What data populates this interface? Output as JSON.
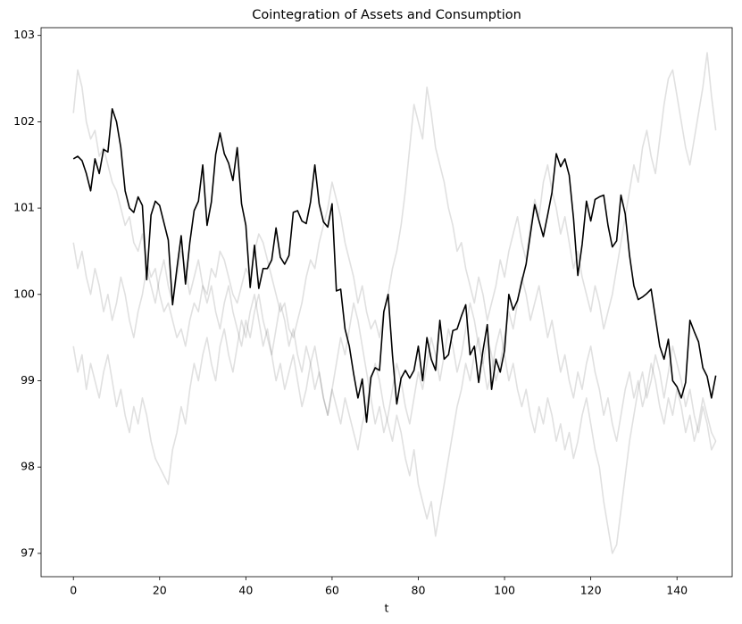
{
  "chart_data": {
    "type": "line",
    "title": "Cointegration of Assets and Consumption",
    "x_label": "t",
    "x": [
      0,
      1,
      2,
      3,
      4,
      5,
      6,
      7,
      8,
      9,
      10,
      11,
      12,
      13,
      14,
      15,
      16,
      17,
      18,
      19,
      20,
      21,
      22,
      23,
      24,
      25,
      26,
      27,
      28,
      29,
      30,
      31,
      32,
      33,
      34,
      35,
      36,
      37,
      38,
      39,
      40,
      41,
      42,
      43,
      44,
      45,
      46,
      47,
      48,
      49,
      50,
      51,
      52,
      53,
      54,
      55,
      56,
      57,
      58,
      59,
      60,
      61,
      62,
      63,
      64,
      65,
      66,
      67,
      68,
      69,
      70,
      71,
      72,
      73,
      74,
      75,
      76,
      77,
      78,
      79,
      80,
      81,
      82,
      83,
      84,
      85,
      86,
      87,
      88,
      89,
      90,
      91,
      92,
      93,
      94,
      95,
      96,
      97,
      98,
      99,
      100,
      101,
      102,
      103,
      104,
      105,
      106,
      107,
      108,
      109,
      110,
      111,
      112,
      113,
      114,
      115,
      116,
      117,
      118,
      119,
      120,
      121,
      122,
      123,
      124,
      125,
      126,
      127,
      128,
      129,
      130,
      131,
      132,
      133,
      134,
      135,
      136,
      137,
      138,
      139,
      140,
      141,
      142,
      143,
      144,
      145,
      146,
      147,
      148,
      149
    ],
    "series": [
      {
        "color": "#000000",
        "alpha": 0.12,
        "values": [
          102.1,
          102.6,
          102.4,
          102.0,
          101.8,
          101.9,
          101.6,
          101.7,
          101.5,
          101.3,
          101.2,
          101.0,
          100.8,
          100.9,
          100.6,
          100.5,
          100.7,
          100.4,
          100.2,
          100.3,
          100.0,
          99.8,
          99.9,
          99.7,
          99.5,
          99.6,
          99.4,
          99.7,
          99.9,
          99.8,
          100.1,
          100.0,
          100.3,
          100.2,
          100.5,
          100.4,
          100.2,
          100.0,
          99.9,
          100.1,
          100.3,
          100.2,
          100.5,
          100.7,
          100.6,
          100.4,
          100.2,
          100.0,
          99.8,
          99.9,
          99.6,
          99.5,
          99.7,
          99.9,
          100.2,
          100.4,
          100.3,
          100.6,
          100.8,
          101.0,
          101.3,
          101.1,
          100.9,
          100.6,
          100.4,
          100.2,
          99.9,
          100.1,
          99.8,
          99.6,
          99.7,
          99.5,
          99.8,
          100.0,
          100.3,
          100.5,
          100.8,
          101.2,
          101.7,
          102.2,
          102.0,
          101.8,
          102.4,
          102.1,
          101.7,
          101.5,
          101.3,
          101.0,
          100.8,
          100.5,
          100.6,
          100.3,
          100.1,
          99.9,
          100.2,
          100.0,
          99.7,
          99.9,
          100.1,
          100.4,
          100.2,
          100.5,
          100.7,
          100.9,
          100.6,
          100.4,
          100.8,
          101.1,
          100.9,
          101.3,
          101.5,
          101.2,
          101.0,
          100.7,
          100.9,
          100.6,
          100.3,
          100.5,
          100.2,
          100.0,
          99.8,
          100.1,
          99.9,
          99.6,
          99.8,
          100.0,
          100.3,
          100.6,
          100.9,
          101.2,
          101.5,
          101.3,
          101.7,
          101.9,
          101.6,
          101.4,
          101.8,
          102.2,
          102.5,
          102.6,
          102.3,
          102.0,
          101.7,
          101.5,
          101.8,
          102.1,
          102.4,
          102.8,
          102.3,
          101.9
        ]
      },
      {
        "color": "#000000",
        "alpha": 0.12,
        "values": [
          99.4,
          99.1,
          99.3,
          98.9,
          99.2,
          99.0,
          98.8,
          99.1,
          99.3,
          99.0,
          98.7,
          98.9,
          98.6,
          98.4,
          98.7,
          98.5,
          98.8,
          98.6,
          98.3,
          98.1,
          98.0,
          97.9,
          97.8,
          98.2,
          98.4,
          98.7,
          98.5,
          98.9,
          99.2,
          99.0,
          99.3,
          99.5,
          99.2,
          99.0,
          99.4,
          99.6,
          99.3,
          99.1,
          99.4,
          99.7,
          99.5,
          99.8,
          100.0,
          99.7,
          99.4,
          99.6,
          99.3,
          99.0,
          99.2,
          98.9,
          99.1,
          99.3,
          99.0,
          98.7,
          98.9,
          99.2,
          99.4,
          99.1,
          98.8,
          98.6,
          98.9,
          99.2,
          99.5,
          99.3,
          99.6,
          99.9,
          99.7,
          99.4,
          99.1,
          98.8,
          98.5,
          98.7,
          98.4,
          98.6,
          98.9,
          99.2,
          99.0,
          98.7,
          98.5,
          98.8,
          99.1,
          98.9,
          99.2,
          99.5,
          99.3,
          99.0,
          99.3,
          99.6,
          99.4,
          99.1,
          99.3,
          99.6,
          99.9,
          99.7,
          99.4,
          99.2,
          99.5,
          99.3,
          99.0,
          99.2,
          99.5,
          99.8,
          99.6,
          99.9,
          100.2,
          100.0,
          99.7,
          99.9,
          100.1,
          99.8,
          99.5,
          99.7,
          99.4,
          99.1,
          99.3,
          99.0,
          98.8,
          99.1,
          98.9,
          99.2,
          99.4,
          99.1,
          98.9,
          98.6,
          98.8,
          98.5,
          98.3,
          98.6,
          98.9,
          99.1,
          98.8,
          99.0,
          98.7,
          98.9,
          99.2,
          99.0,
          98.7,
          98.5,
          98.8,
          98.6,
          98.9,
          98.7,
          98.4,
          98.6,
          98.3,
          98.5,
          98.8,
          98.6,
          98.4,
          98.3
        ]
      },
      {
        "color": "#000000",
        "alpha": 0.12,
        "values": [
          100.6,
          100.3,
          100.5,
          100.2,
          100.0,
          100.3,
          100.1,
          99.8,
          100.0,
          99.7,
          99.9,
          100.2,
          100.0,
          99.7,
          99.5,
          99.8,
          100.0,
          100.3,
          100.1,
          99.9,
          100.2,
          100.4,
          100.1,
          99.9,
          100.2,
          100.5,
          100.3,
          100.0,
          100.2,
          100.4,
          100.1,
          99.9,
          100.1,
          99.8,
          99.6,
          99.9,
          100.1,
          99.8,
          99.6,
          99.4,
          99.7,
          99.5,
          99.8,
          100.0,
          99.7,
          99.5,
          99.3,
          99.6,
          99.9,
          99.7,
          99.4,
          99.6,
          99.3,
          99.1,
          99.4,
          99.2,
          98.9,
          99.1,
          98.8,
          98.6,
          98.9,
          98.7,
          98.5,
          98.8,
          98.6,
          98.4,
          98.2,
          98.5,
          98.7,
          99.0,
          99.2,
          99.0,
          98.7,
          98.5,
          98.3,
          98.6,
          98.4,
          98.1,
          97.9,
          98.2,
          97.8,
          97.6,
          97.4,
          97.6,
          97.2,
          97.5,
          97.8,
          98.1,
          98.4,
          98.7,
          98.9,
          99.2,
          99.0,
          99.3,
          99.5,
          99.2,
          98.9,
          99.1,
          99.4,
          99.6,
          99.3,
          99.0,
          99.2,
          98.9,
          98.7,
          98.9,
          98.6,
          98.4,
          98.7,
          98.5,
          98.8,
          98.6,
          98.3,
          98.5,
          98.2,
          98.4,
          98.1,
          98.3,
          98.6,
          98.8,
          98.5,
          98.2,
          98.0,
          97.6,
          97.3,
          97.0,
          97.1,
          97.5,
          97.9,
          98.3,
          98.6,
          98.9,
          99.1,
          98.8,
          99.0,
          99.3,
          99.1,
          98.8,
          99.1,
          99.4,
          99.2,
          99.0,
          98.7,
          98.9,
          98.6,
          98.4,
          98.7,
          98.5,
          98.2,
          98.3
        ]
      },
      {
        "color": "#000000",
        "alpha": 1,
        "values": [
          101.57,
          101.6,
          101.55,
          101.4,
          101.2,
          101.57,
          101.4,
          101.68,
          101.65,
          102.15,
          102.0,
          101.7,
          101.2,
          101.0,
          100.95,
          101.13,
          101.03,
          100.17,
          100.92,
          101.08,
          101.03,
          100.83,
          100.63,
          99.88,
          100.3,
          100.68,
          100.12,
          100.6,
          100.97,
          101.08,
          101.5,
          100.8,
          101.07,
          101.62,
          101.87,
          101.63,
          101.52,
          101.32,
          101.7,
          101.05,
          100.8,
          100.08,
          100.57,
          100.07,
          100.3,
          100.3,
          100.4,
          100.77,
          100.43,
          100.35,
          100.45,
          100.95,
          100.97,
          100.85,
          100.82,
          101.07,
          101.5,
          101.05,
          100.84,
          100.78,
          101.05,
          100.04,
          100.06,
          99.6,
          99.4,
          99.08,
          98.8,
          99.02,
          98.52,
          99.04,
          99.15,
          99.12,
          99.8,
          100.0,
          99.3,
          98.73,
          99.03,
          99.12,
          99.03,
          99.12,
          99.4,
          99.0,
          99.5,
          99.25,
          99.12,
          99.7,
          99.25,
          99.3,
          99.58,
          99.6,
          99.75,
          99.88,
          99.3,
          99.4,
          98.98,
          99.35,
          99.65,
          98.9,
          99.25,
          99.1,
          99.35,
          100.0,
          99.82,
          99.93,
          100.15,
          100.35,
          100.7,
          101.04,
          100.85,
          100.67,
          100.92,
          101.18,
          101.63,
          101.48,
          101.57,
          101.38,
          100.88,
          100.22,
          100.58,
          101.08,
          100.85,
          101.1,
          101.13,
          101.15,
          100.8,
          100.55,
          100.62,
          101.15,
          100.93,
          100.45,
          100.1,
          99.94,
          99.97,
          100.01,
          100.06,
          99.73,
          99.4,
          99.25,
          99.48,
          99.0,
          98.93,
          98.8,
          98.98,
          99.7,
          99.57,
          99.45,
          99.15,
          99.05,
          98.8,
          99.06
        ]
      }
    ],
    "xlim": [
      -7.5,
      152.8
    ],
    "ylim": [
      96.73,
      103.09
    ],
    "xticks": [
      0,
      20,
      40,
      60,
      80,
      100,
      120,
      140
    ],
    "yticks": [
      97,
      98,
      99,
      100,
      101,
      102,
      103
    ],
    "grid": false
  }
}
